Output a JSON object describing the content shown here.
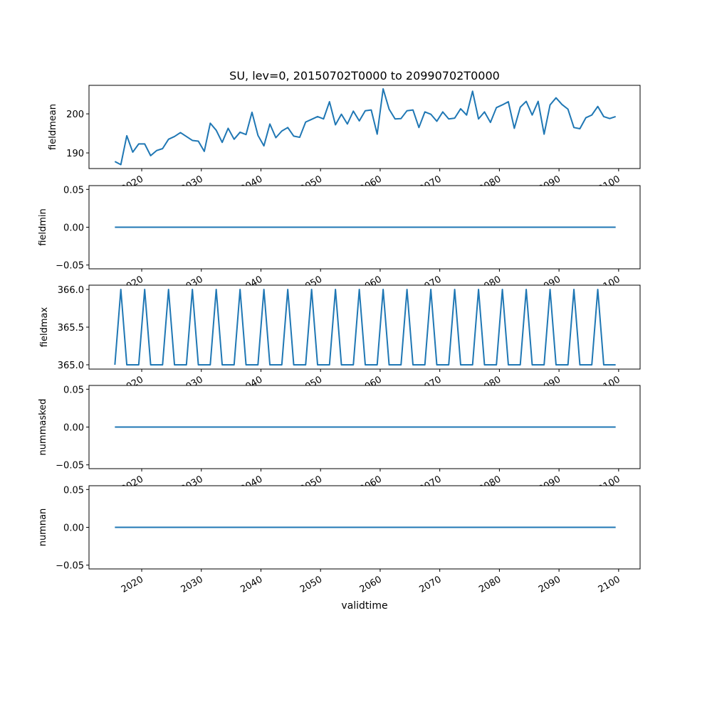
{
  "chart_data": {
    "type": "line",
    "title": "SU, lev=0, 20150702T0000 to 20990702T0000",
    "xlabel": "validtime",
    "x_start_year": 2015,
    "x_end_year": 2099,
    "x_offset_year_fraction": 0.5,
    "xlim": [
      2011.16,
      2103.6
    ],
    "xticks": [
      2020,
      2030,
      2040,
      2050,
      2060,
      2070,
      2080,
      2090,
      2100
    ],
    "xtick_labels": [
      "2020",
      "2030",
      "2040",
      "2050",
      "2060",
      "2070",
      "2080",
      "2090",
      "2100"
    ],
    "line_color": "#1f77b4",
    "grid": false,
    "panels": [
      {
        "ylabel": "fieldmean",
        "ylim": [
          186.0,
          207.3
        ],
        "yticks": [
          190,
          200
        ],
        "ytick_labels": [
          "190",
          "200"
        ],
        "values": [
          187.8,
          187.0,
          194.4,
          190.2,
          192.3,
          192.3,
          189.3,
          190.6,
          191.1,
          193.5,
          194.2,
          195.2,
          194.2,
          193.2,
          193.0,
          190.4,
          197.6,
          195.8,
          192.7,
          196.3,
          193.5,
          195.3,
          194.7,
          200.4,
          194.5,
          191.8,
          197.4,
          193.9,
          195.6,
          196.5,
          194.3,
          194.0,
          197.9,
          198.6,
          199.3,
          198.7,
          203.1,
          197.2,
          199.9,
          197.4,
          200.7,
          198.2,
          200.8,
          201.0,
          194.8,
          206.4,
          201.2,
          198.7,
          198.8,
          200.8,
          201.0,
          196.5,
          200.5,
          199.9,
          198.1,
          200.5,
          198.7,
          198.9,
          201.3,
          199.7,
          205.8,
          198.7,
          200.5,
          197.8,
          201.6,
          202.3,
          203.1,
          196.3,
          201.7,
          203.2,
          199.7,
          203.2,
          194.8,
          202.3,
          204.1,
          202.4,
          201.2,
          196.5,
          196.2,
          199.0,
          199.7,
          201.9,
          199.3,
          198.8,
          199.3
        ]
      },
      {
        "ylabel": "fieldmin",
        "ylim": [
          -0.055,
          0.055
        ],
        "yticks": [
          -0.05,
          0.0,
          0.05
        ],
        "ytick_labels": [
          "−0.05",
          "0.00",
          "0.05"
        ],
        "constant": 0
      },
      {
        "ylabel": "fieldmax",
        "ylim": [
          364.943,
          366.057
        ],
        "yticks": [
          365.0,
          365.5,
          366.0
        ],
        "ytick_labels": [
          "365.0",
          "365.5",
          "366.0"
        ],
        "rule": "366 in leap years, 365 otherwise"
      },
      {
        "ylabel": "nummasked",
        "ylim": [
          -0.055,
          0.055
        ],
        "yticks": [
          -0.05,
          0.0,
          0.05
        ],
        "ytick_labels": [
          "−0.05",
          "0.00",
          "0.05"
        ],
        "constant": 0
      },
      {
        "ylabel": "numnan",
        "ylim": [
          -0.055,
          0.055
        ],
        "yticks": [
          -0.05,
          0.0,
          0.05
        ],
        "ytick_labels": [
          "−0.05",
          "0.00",
          "0.05"
        ],
        "constant": 0
      }
    ]
  }
}
